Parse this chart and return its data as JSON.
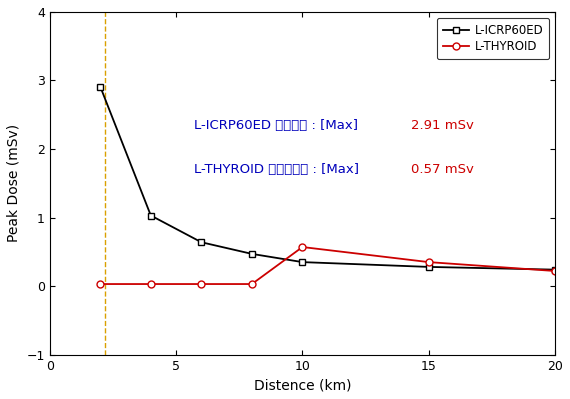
{
  "icrp_x": [
    2,
    4,
    6,
    8,
    10,
    15,
    20
  ],
  "icrp_y": [
    2.91,
    1.03,
    0.64,
    0.47,
    0.35,
    0.28,
    0.24
  ],
  "thyroid_x": [
    2,
    4,
    6,
    8,
    10,
    15,
    20
  ],
  "thyroid_y": [
    0.03,
    0.03,
    0.03,
    0.03,
    0.57,
    0.35,
    0.22
  ],
  "icrp_color": "#000000",
  "thyroid_color": "#cc0000",
  "vline_x": 2.2,
  "vline_color": "#daa000",
  "xlabel": "Distence (km)",
  "ylabel": "Peak Dose (mSv)",
  "xlim": [
    0,
    20
  ],
  "ylim": [
    -1,
    4
  ],
  "xticks": [
    0,
    5,
    10,
    15,
    20
  ],
  "yticks": [
    -1,
    0,
    1,
    2,
    3,
    4
  ],
  "ann1_blue": "L-ICRP60ED ［전신］ : [Max] ",
  "ann1_red": "2.91 mSv",
  "ann2_blue": "L-THYROID ［갑상선］ : [Max] ",
  "ann2_red": "0.57 mSv",
  "legend_icrp": "L-ICRP60ED",
  "legend_thyroid": "L-THYROID",
  "bg_color": "#ffffff"
}
